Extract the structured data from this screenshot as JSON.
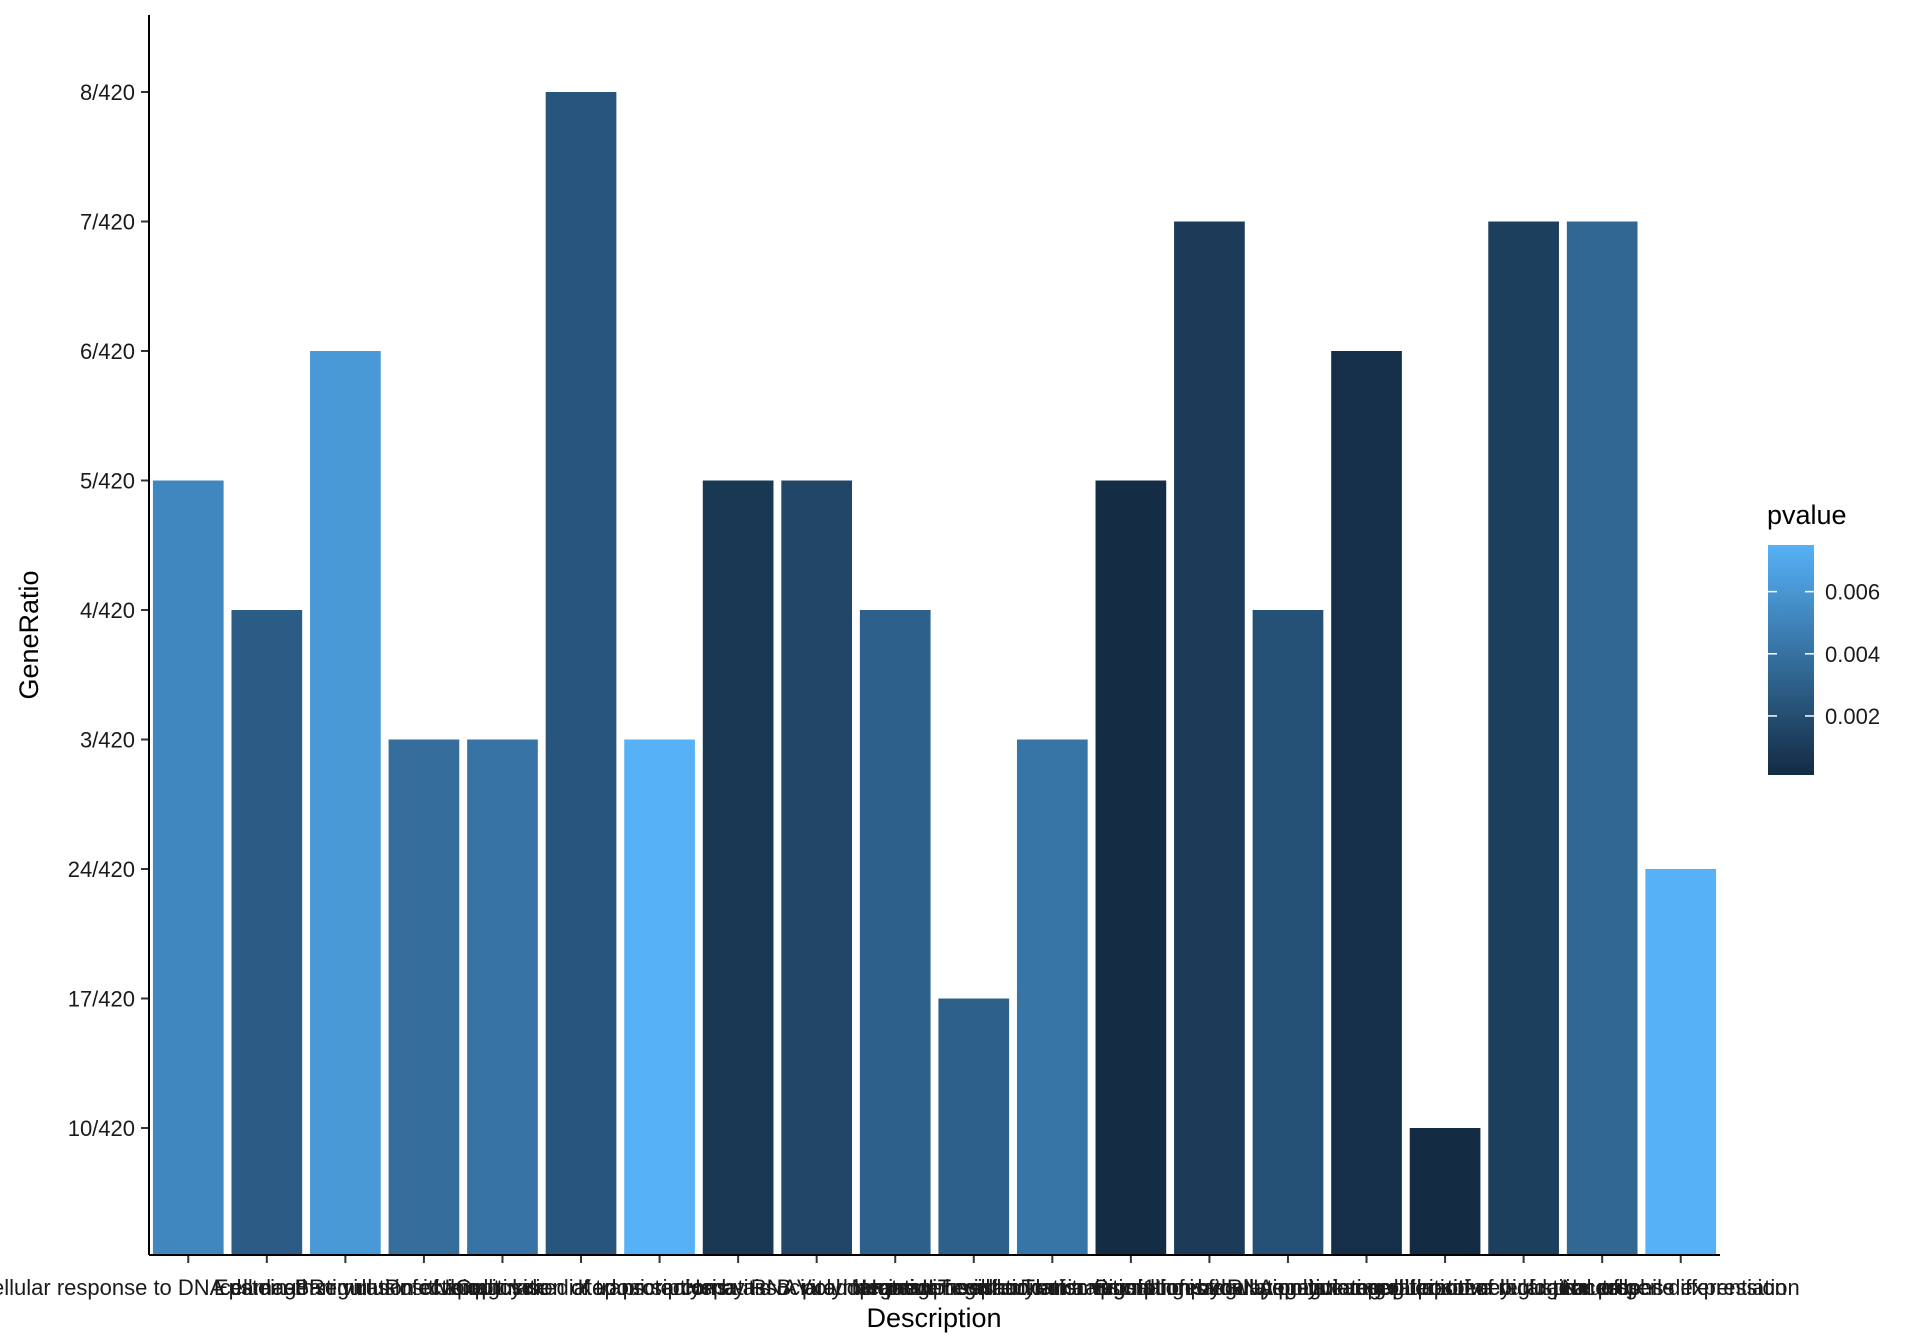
{
  "chart_data": {
    "type": "bar",
    "xlabel": "Description",
    "ylabel": "GeneRatio",
    "y_tick_labels": [
      "10/420",
      "17/420",
      "24/420",
      "3/420",
      "4/420",
      "5/420",
      "6/420",
      "7/420",
      "8/420"
    ],
    "categories": [
      "cellular response to DNA damage stimulus",
      "cell death",
      "Epstein-Barr virus infection",
      "Regulation of apoptosis",
      "Cell cycle",
      "Ubiquitin mediated proteolysis",
      "Positive regulation of transcription by RNA polymerase II",
      "Hepatitis B",
      "Kaposi sarcoma-associated herpesvirus infection",
      "Viral carcinogenesis",
      "protein phosphorylation",
      "Human T-cell leukemia virus 1 infection",
      "Negative regulation of transcription by RNA polymerase II",
      "Transcriptional misregulation in cancer",
      "regulation of cell population proliferation",
      "Signaling pathways regulating pluripotency of stem cells",
      "negative regulation of cellular process",
      "regulation of biological process",
      "positive regulation of gene expression",
      "Neutrophil differentiation"
    ],
    "values": [
      "5/420",
      "4/420",
      "6/420",
      "3/420",
      "3/420",
      "8/420",
      "3/420",
      "5/420",
      "5/420",
      "4/420",
      "17/420",
      "3/420",
      "5/420",
      "7/420",
      "4/420",
      "6/420",
      "10/420",
      "7/420",
      "7/420",
      "24/420"
    ],
    "pvalue": [
      0.0052,
      0.0028,
      0.0062,
      0.0038,
      0.0041,
      0.0024,
      0.0075,
      0.0008,
      0.0016,
      0.003,
      0.003,
      0.0042,
      0.0002,
      0.001,
      0.0022,
      0.0003,
      0.0001,
      0.0012,
      0.0034,
      0.0075
    ],
    "legend": {
      "title": "pvalue",
      "ticks": [
        0.002,
        0.004,
        0.006
      ],
      "tick_labels": [
        "0.002",
        "0.004",
        "0.006"
      ],
      "range": [
        0.0001,
        0.0075
      ],
      "position": "right"
    },
    "colors": {
      "low": "#132B43",
      "high": "#56B1F7"
    },
    "grid": false
  }
}
